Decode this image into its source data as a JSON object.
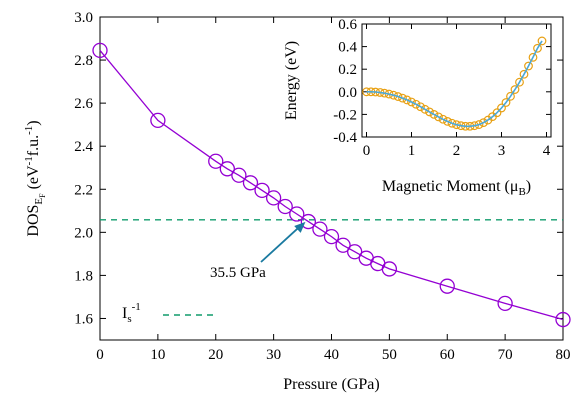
{
  "chart_data": [
    {
      "type": "line",
      "xlabel": "Pressure (GPa)",
      "ylabel_main": "DOS",
      "ylabel_sub": "E",
      "ylabel_subsub": "F",
      "ylabel_units_pre": " (eV",
      "ylabel_units_exp1": "-1",
      "ylabel_units_mid": "f.u.",
      "ylabel_units_exp2": "-1",
      "ylabel_units_post": ")",
      "xlim": [
        0,
        80
      ],
      "ylim": [
        1.5,
        3.0
      ],
      "xticks": [
        0,
        10,
        20,
        30,
        40,
        50,
        60,
        70,
        80
      ],
      "yticks": [
        1.6,
        1.8,
        2.0,
        2.2,
        2.4,
        2.6,
        2.8,
        3.0
      ],
      "series": [
        {
          "color": "#9400d3",
          "marker": "open-circle",
          "x": [
            0,
            10,
            20,
            22,
            24,
            26,
            28,
            30,
            32,
            34,
            36,
            38,
            40,
            42,
            44,
            46,
            48,
            50,
            60,
            70,
            80
          ],
          "y": [
            2.845,
            2.52,
            2.33,
            2.295,
            2.265,
            2.23,
            2.195,
            2.16,
            2.12,
            2.085,
            2.05,
            2.015,
            1.98,
            1.94,
            1.91,
            1.88,
            1.855,
            1.83,
            1.75,
            1.67,
            1.595
          ]
        }
      ],
      "threshold": {
        "y": 2.058,
        "color": "#109c6c",
        "style": "dashed"
      },
      "legend": {
        "label_main": "I",
        "label_sub": "s",
        "label_exp": "-1",
        "placement": "bottom-left"
      },
      "annotation": {
        "text": "35.5 GPa",
        "x": 35.5,
        "y": 2.058,
        "arrow_color": "#1a7aa0"
      }
    },
    {
      "type": "line",
      "xlabel_main": "Magnetic Moment (",
      "xlabel_mu": "μ",
      "xlabel_sub": "B",
      "xlabel_post": ")",
      "ylabel": "Energy (eV)",
      "xlim": [
        -0.1,
        4.1
      ],
      "ylim": [
        -0.4,
        0.6
      ],
      "xticks": [
        0,
        1,
        2,
        3,
        4
      ],
      "yticks": [
        -0.4,
        -0.2,
        0.0,
        0.2,
        0.4,
        0.6
      ],
      "series": [
        {
          "color": "#e8a012",
          "marker": "open-circle",
          "line_color": "#4aa8d8",
          "x": [
            0.0,
            0.1,
            0.2,
            0.3,
            0.4,
            0.5,
            0.6,
            0.7,
            0.8,
            0.9,
            1.0,
            1.1,
            1.2,
            1.3,
            1.4,
            1.5,
            1.6,
            1.7,
            1.8,
            1.9,
            2.0,
            2.1,
            2.2,
            2.3,
            2.4,
            2.5,
            2.6,
            2.7,
            2.8,
            2.9,
            3.0,
            3.1,
            3.2,
            3.3,
            3.4,
            3.5,
            3.6,
            3.7,
            3.8,
            3.9
          ],
          "y": [
            0.0,
            0.0,
            -0.002,
            -0.006,
            -0.012,
            -0.02,
            -0.03,
            -0.042,
            -0.056,
            -0.072,
            -0.09,
            -0.11,
            -0.132,
            -0.155,
            -0.178,
            -0.2,
            -0.222,
            -0.243,
            -0.262,
            -0.278,
            -0.291,
            -0.3,
            -0.305,
            -0.305,
            -0.3,
            -0.29,
            -0.273,
            -0.25,
            -0.22,
            -0.185,
            -0.143,
            -0.095,
            -0.04,
            0.02,
            0.085,
            0.155,
            0.228,
            0.305,
            0.385,
            0.45
          ]
        }
      ]
    }
  ]
}
